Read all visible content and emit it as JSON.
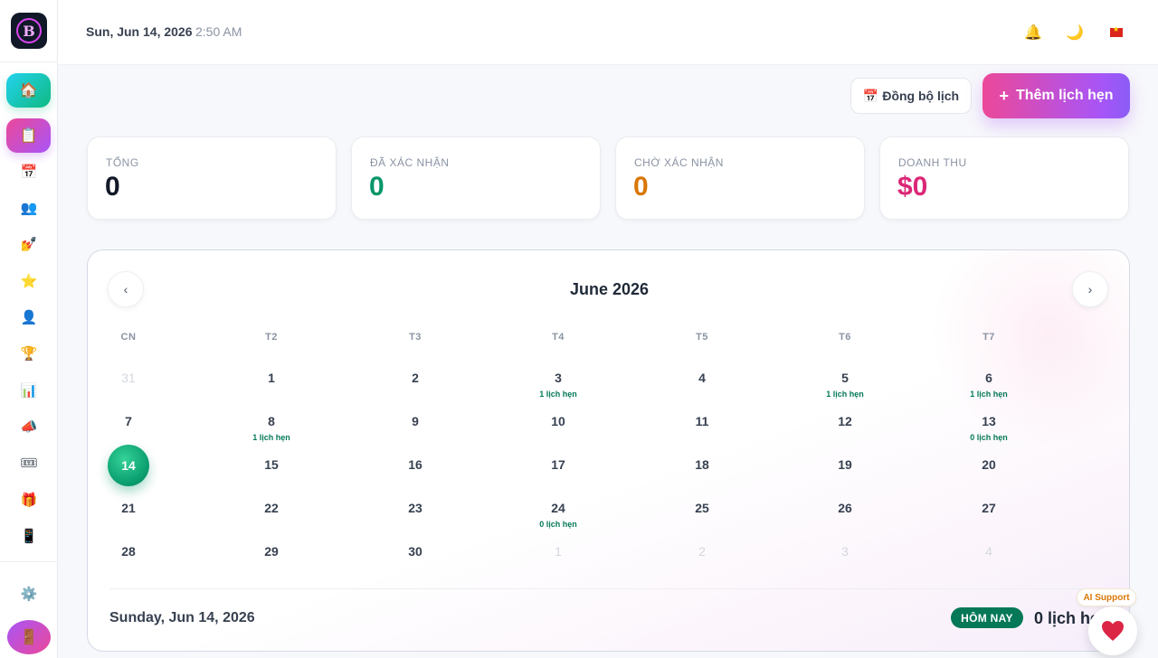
{
  "header": {
    "date": "Sun, Jun 14, 2026",
    "time": "2:50 AM",
    "icons": [
      "bell-icon",
      "moon-icon",
      "vietnam-flag-icon"
    ]
  },
  "sidebar": {
    "logo_letter": "B",
    "items": [
      {
        "name": "home",
        "icon": "🏠"
      },
      {
        "name": "appointments",
        "icon": "📋"
      },
      {
        "name": "calendar",
        "icon": "📅"
      },
      {
        "name": "customers",
        "icon": "👥"
      },
      {
        "name": "services",
        "icon": "💅"
      },
      {
        "name": "reviews",
        "icon": "⭐"
      },
      {
        "name": "staff",
        "icon": "👤"
      },
      {
        "name": "rewards",
        "icon": "🏆"
      },
      {
        "name": "reports",
        "icon": "📊"
      },
      {
        "name": "marketing",
        "icon": "📣"
      },
      {
        "name": "tickets",
        "icon": "🎟"
      },
      {
        "name": "gifts",
        "icon": "🎁"
      },
      {
        "name": "mobile",
        "icon": "📱"
      },
      {
        "name": "settings",
        "icon": "⚙️"
      },
      {
        "name": "logout",
        "icon": "🚪"
      }
    ]
  },
  "actions": {
    "sync_icon": "📅",
    "sync_label": "Đồng bộ lịch",
    "add_plus": "+",
    "add_label": "Thêm lịch hẹn"
  },
  "stats": [
    {
      "label": "Tổng",
      "value": "0",
      "color": "#111827"
    },
    {
      "label": "Đã xác nhận",
      "value": "0",
      "color": "#059669"
    },
    {
      "label": "Chờ xác nhận",
      "value": "0",
      "color": "#d97706"
    },
    {
      "label": "Doanh thu",
      "value": "$0",
      "color": "#db2777"
    }
  ],
  "calendar": {
    "month": "June 2026",
    "prev_symbol": "‹",
    "next_symbol": "›",
    "weekdays": [
      "CN",
      "T2",
      "T3",
      "T4",
      "T5",
      "T6",
      "T7"
    ],
    "weeks": [
      [
        {
          "d": "31",
          "m": true
        },
        {
          "d": "1"
        },
        {
          "d": "2"
        },
        {
          "d": "3",
          "c": "1 lịch hẹn"
        },
        {
          "d": "4"
        },
        {
          "d": "5",
          "c": "1 lịch hẹn"
        },
        {
          "d": "6",
          "c": "1 lịch hẹn"
        }
      ],
      [
        {
          "d": "7"
        },
        {
          "d": "8",
          "c": "1 lịch hẹn"
        },
        {
          "d": "9"
        },
        {
          "d": "10"
        },
        {
          "d": "11"
        },
        {
          "d": "12"
        },
        {
          "d": "13",
          "c": "0 lịch hẹn"
        }
      ],
      [
        {
          "d": "14",
          "today": true
        },
        {
          "d": "15"
        },
        {
          "d": "16"
        },
        {
          "d": "17"
        },
        {
          "d": "18"
        },
        {
          "d": "19"
        },
        {
          "d": "20"
        }
      ],
      [
        {
          "d": "21"
        },
        {
          "d": "22"
        },
        {
          "d": "23"
        },
        {
          "d": "24",
          "c": "0 lịch hẹn"
        },
        {
          "d": "25"
        },
        {
          "d": "26"
        },
        {
          "d": "27"
        }
      ],
      [
        {
          "d": "28"
        },
        {
          "d": "29"
        },
        {
          "d": "30"
        },
        {
          "d": "1",
          "m": true
        },
        {
          "d": "2",
          "m": true
        },
        {
          "d": "3",
          "m": true
        },
        {
          "d": "4",
          "m": true
        }
      ]
    ],
    "selected_date": "Sunday, Jun 14, 2026",
    "today_badge": "HÔM NAY",
    "appointment_count": "0 lịch hẹn"
  },
  "support": {
    "label": "AI Support"
  }
}
